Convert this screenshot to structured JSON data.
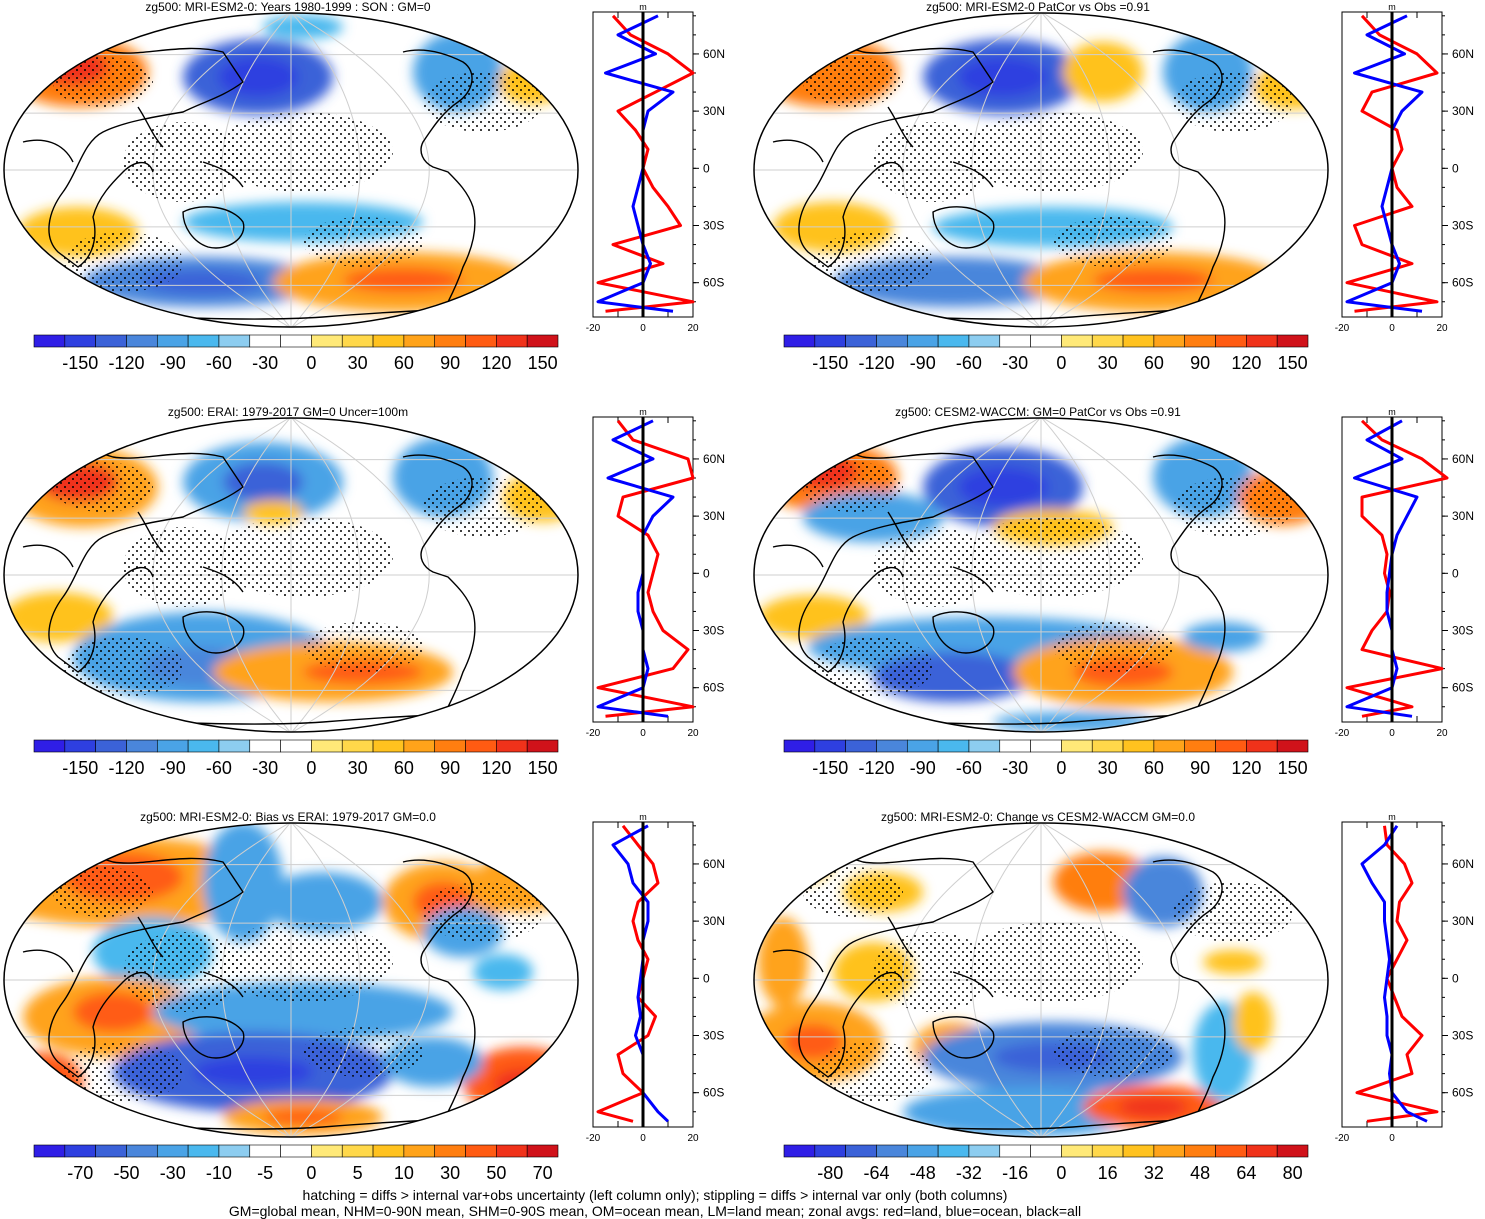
{
  "colors": {
    "palette": [
      "#2f1ee6",
      "#2e3fe0",
      "#3b62d8",
      "#4a86db",
      "#4aa3e6",
      "#4ab8ee",
      "#8dcdf0",
      "#ffffff",
      "#ffffff",
      "#ffe978",
      "#ffd84a",
      "#ffc21f",
      "#ffa31a",
      "#ff7e10",
      "#ff5b12",
      "#f0321a",
      "#d0121a"
    ],
    "land_curve": "#ff0000",
    "ocean_curve": "#0000ff",
    "all_curve": "#000000"
  },
  "panels": [
    {
      "title": "zg500: MRI-ESM2-0: Years 1980-1999 : SON : GM=0",
      "colorbar_labels": [
        "-150",
        "-120",
        "-90",
        "-60",
        "-30",
        "0",
        "30",
        "60",
        "90",
        "120",
        "150"
      ],
      "profile_top_label": "m",
      "profile_x_ticks": [
        "-20",
        "0",
        "20"
      ],
      "profile_lat_labels": [
        "60N",
        "30N",
        "0",
        "30S",
        "60S"
      ],
      "hatching": false,
      "profile_data": {
        "lat": [
          80,
          70,
          60,
          50,
          40,
          30,
          20,
          10,
          0,
          -10,
          -20,
          -30,
          -40,
          -50,
          -60,
          -70,
          -75
        ],
        "land": [
          -12,
          -5,
          10,
          20,
          5,
          -10,
          -3,
          2,
          0,
          4,
          10,
          15,
          -12,
          8,
          -18,
          20,
          -15
        ],
        "ocean": [
          6,
          -10,
          5,
          -15,
          12,
          2,
          0,
          0,
          0,
          -2,
          -4,
          -2,
          0,
          3,
          0,
          -18,
          12
        ]
      }
    },
    {
      "title": "zg500: MRI-ESM2-0 PatCor vs Obs =0.91",
      "colorbar_labels": [
        "-150",
        "-120",
        "-90",
        "-60",
        "-30",
        "0",
        "30",
        "60",
        "90",
        "120",
        "150"
      ],
      "profile_top_label": "m",
      "profile_x_ticks": [
        "-20",
        "0",
        "20"
      ],
      "profile_lat_labels": [
        "60N",
        "30N",
        "0",
        "30S",
        "60S"
      ],
      "hatching": false,
      "profile_data": {
        "lat": [
          80,
          70,
          60,
          50,
          40,
          30,
          20,
          10,
          0,
          -10,
          -20,
          -30,
          -40,
          -50,
          -60,
          -70,
          -75
        ],
        "land": [
          -12,
          -5,
          10,
          18,
          -8,
          -12,
          2,
          4,
          0,
          2,
          8,
          -15,
          -12,
          8,
          -18,
          18,
          -15
        ],
        "ocean": [
          6,
          -10,
          5,
          -15,
          12,
          4,
          0,
          0,
          0,
          -2,
          -4,
          -2,
          0,
          3,
          0,
          -18,
          12
        ]
      }
    },
    {
      "title": "zg500: ERAI: 1979-2017 GM=0 Uncer=100m",
      "colorbar_labels": [
        "-150",
        "-120",
        "-90",
        "-60",
        "-30",
        "0",
        "30",
        "60",
        "90",
        "120",
        "150"
      ],
      "profile_top_label": "m",
      "profile_x_ticks": [
        "-20",
        "0",
        "20"
      ],
      "profile_lat_labels": [
        "60N",
        "30N",
        "0",
        "30S",
        "60S"
      ],
      "hatching": false,
      "profile_data": {
        "lat": [
          80,
          70,
          60,
          50,
          40,
          30,
          20,
          10,
          0,
          -10,
          -20,
          -30,
          -40,
          -50,
          -60,
          -70,
          -75
        ],
        "land": [
          -10,
          -4,
          18,
          20,
          -8,
          -10,
          2,
          6,
          4,
          2,
          4,
          8,
          18,
          12,
          -18,
          20,
          -15
        ],
        "ocean": [
          4,
          -12,
          4,
          -14,
          12,
          4,
          0,
          0,
          0,
          -2,
          -2,
          0,
          0,
          2,
          0,
          -18,
          10
        ]
      }
    },
    {
      "title": "zg500: CESM2-WACCM: GM=0 PatCor vs Obs =0.91",
      "colorbar_labels": [
        "-150",
        "-120",
        "-90",
        "-60",
        "-30",
        "0",
        "30",
        "60",
        "90",
        "120",
        "150"
      ],
      "profile_top_label": "m",
      "profile_x_ticks": [
        "-20",
        "0",
        "20"
      ],
      "profile_lat_labels": [
        "60N",
        "30N",
        "0",
        "30S",
        "60S"
      ],
      "hatching": false,
      "profile_data": {
        "lat": [
          80,
          70,
          60,
          50,
          40,
          30,
          20,
          10,
          0,
          -10,
          -20,
          -30,
          -40,
          -50,
          -60,
          -70,
          -75
        ],
        "land": [
          -12,
          -4,
          12,
          22,
          -12,
          -12,
          -4,
          -2,
          -3,
          -1,
          -2,
          -8,
          -12,
          20,
          -18,
          8,
          -12
        ],
        "ocean": [
          4,
          -10,
          4,
          -15,
          10,
          6,
          2,
          0,
          -1,
          -2,
          -2,
          0,
          0,
          2,
          0,
          -18,
          8
        ]
      }
    },
    {
      "title": "zg500: MRI-ESM2-0: Bias vs ERAI: 1979-2017  GM=0.0",
      "colorbar_labels": [
        "-70",
        "-50",
        "-30",
        "-10",
        "-5",
        "0",
        "5",
        "10",
        "30",
        "50",
        "70"
      ],
      "profile_top_label": "m",
      "profile_x_ticks": [
        "-20",
        "0",
        "20"
      ],
      "profile_lat_labels": [
        "60N",
        "30N",
        "0",
        "30S",
        "60S"
      ],
      "hatching": true,
      "profile_data": {
        "lat": [
          80,
          70,
          60,
          50,
          40,
          30,
          20,
          10,
          0,
          -10,
          -20,
          -30,
          -40,
          -50,
          -60,
          -70,
          -75
        ],
        "land": [
          -8,
          -2,
          4,
          6,
          -2,
          -4,
          -2,
          2,
          0,
          -2,
          5,
          2,
          -10,
          -8,
          0,
          -18,
          -4
        ],
        "ocean": [
          2,
          -12,
          -6,
          -4,
          2,
          2,
          0,
          0,
          -1,
          -2,
          -1,
          -3,
          0,
          0,
          0,
          6,
          10
        ]
      }
    },
    {
      "title": "zg500: MRI-ESM2-0: Change vs CESM2-WACCM GM=0.0",
      "colorbar_labels": [
        "-80",
        "-64",
        "-48",
        "-32",
        "-16",
        "0",
        "16",
        "32",
        "48",
        "64",
        "80"
      ],
      "profile_top_label": "m",
      "profile_x_ticks": [
        "-20",
        "0"
      ],
      "profile_lat_labels": [
        "60N",
        "30N",
        "0",
        "30S",
        "60S"
      ],
      "hatching": false,
      "profile_data": {
        "lat": [
          80,
          70,
          60,
          50,
          40,
          30,
          20,
          10,
          0,
          -10,
          -20,
          -30,
          -40,
          -50,
          -60,
          -70,
          -75
        ],
        "land": [
          -3,
          -2,
          5,
          8,
          3,
          2,
          6,
          2,
          -2,
          1,
          4,
          12,
          6,
          8,
          -14,
          18,
          -10
        ],
        "ocean": [
          2,
          -3,
          -12,
          -8,
          -3,
          -3,
          -2,
          -1,
          -2,
          -3,
          -2,
          -2,
          0,
          -1,
          0,
          6,
          14
        ]
      }
    }
  ],
  "footer": {
    "line1": "hatching = diffs > internal var+obs uncertainty (left column only); stippling = diffs > internal var only (both columns)",
    "line2": "GM=global mean, NHM=0-90N mean, SHM=0-90S mean, OM=ocean mean, LM=land mean; zonal avgs: red=land, blue=ocean, black=all"
  }
}
